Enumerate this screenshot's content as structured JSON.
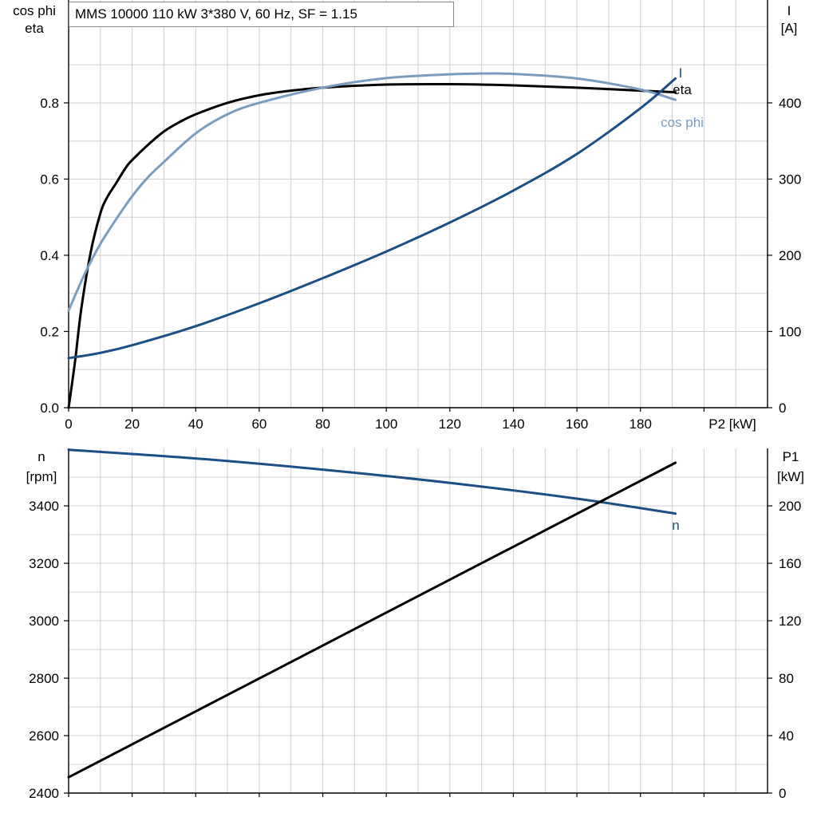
{
  "chart_data": [
    {
      "type": "line",
      "title": "MMS 10000   110 kW   3*380 V, 60 Hz, SF = 1.15",
      "xlabel": "P2 [kW]",
      "xlim": [
        0,
        220
      ],
      "xticks": [
        0,
        20,
        40,
        60,
        80,
        100,
        120,
        140,
        160,
        180
      ],
      "ylabel_left": [
        "cos phi",
        "eta"
      ],
      "ylim_left": [
        0,
        1.07
      ],
      "yticks_left": [
        "0.0",
        "0.2",
        "0.4",
        "0.6",
        "0.8"
      ],
      "yticks_left_values": [
        0,
        0.2,
        0.4,
        0.6,
        0.8
      ],
      "ylabel_right": [
        "I",
        "[A]"
      ],
      "ylim_right": [
        0,
        535
      ],
      "yticks_right": [
        "0",
        "100",
        "200",
        "300",
        "400"
      ],
      "yticks_right_values": [
        0,
        100,
        200,
        300,
        400
      ],
      "grid": true,
      "series": [
        {
          "name": "eta",
          "axis": "left",
          "color": "#000000",
          "x": [
            0,
            2,
            4,
            7,
            10,
            12,
            15,
            18,
            20,
            25,
            30,
            35,
            40,
            50,
            60,
            70,
            80,
            100,
            120,
            140,
            160,
            180,
            191
          ],
          "y": [
            0.0,
            0.12,
            0.26,
            0.41,
            0.51,
            0.55,
            0.59,
            0.63,
            0.65,
            0.69,
            0.725,
            0.75,
            0.77,
            0.8,
            0.82,
            0.832,
            0.84,
            0.848,
            0.849,
            0.846,
            0.84,
            0.832,
            0.828
          ]
        },
        {
          "name": "cos phi",
          "axis": "left",
          "color": "#7a9dbf",
          "x": [
            0,
            5,
            10,
            15,
            20,
            25,
            30,
            40,
            50,
            60,
            80,
            100,
            120,
            130,
            140,
            160,
            180,
            191
          ],
          "y": [
            0.255,
            0.35,
            0.43,
            0.495,
            0.555,
            0.605,
            0.645,
            0.72,
            0.77,
            0.8,
            0.84,
            0.865,
            0.875,
            0.877,
            0.876,
            0.864,
            0.835,
            0.808
          ]
        },
        {
          "name": "I",
          "axis": "right",
          "color": "#1b4f85",
          "x": [
            0,
            10,
            20,
            40,
            60,
            80,
            100,
            120,
            140,
            160,
            180,
            191
          ],
          "y": [
            65,
            72,
            82,
            107,
            137,
            170,
            205,
            243,
            285,
            333,
            393,
            432
          ]
        }
      ]
    },
    {
      "type": "line",
      "xlim": [
        0,
        220
      ],
      "ylabel_left": [
        "n",
        "[rpm]"
      ],
      "ylim_left": [
        2400,
        3600
      ],
      "yticks_left": [
        "2400",
        "2600",
        "2800",
        "3000",
        "3200",
        "3400"
      ],
      "yticks_left_values": [
        2400,
        2600,
        2800,
        3000,
        3200,
        3400
      ],
      "ylabel_right": [
        "P1",
        "[kW]"
      ],
      "ylim_right": [
        0,
        240
      ],
      "yticks_right": [
        "0",
        "40",
        "80",
        "120",
        "160",
        "200"
      ],
      "yticks_right_values": [
        0,
        40,
        80,
        120,
        160,
        200
      ],
      "grid": true,
      "series": [
        {
          "name": "n",
          "axis": "left",
          "color": "#1b4f85",
          "x": [
            0,
            40,
            80,
            120,
            160,
            191
          ],
          "y": [
            3595,
            3565,
            3526,
            3480,
            3425,
            3373
          ]
        },
        {
          "name": "",
          "axis": "right",
          "color": "#000000",
          "x": [
            0,
            191
          ],
          "y": [
            11,
            230
          ]
        }
      ]
    }
  ]
}
